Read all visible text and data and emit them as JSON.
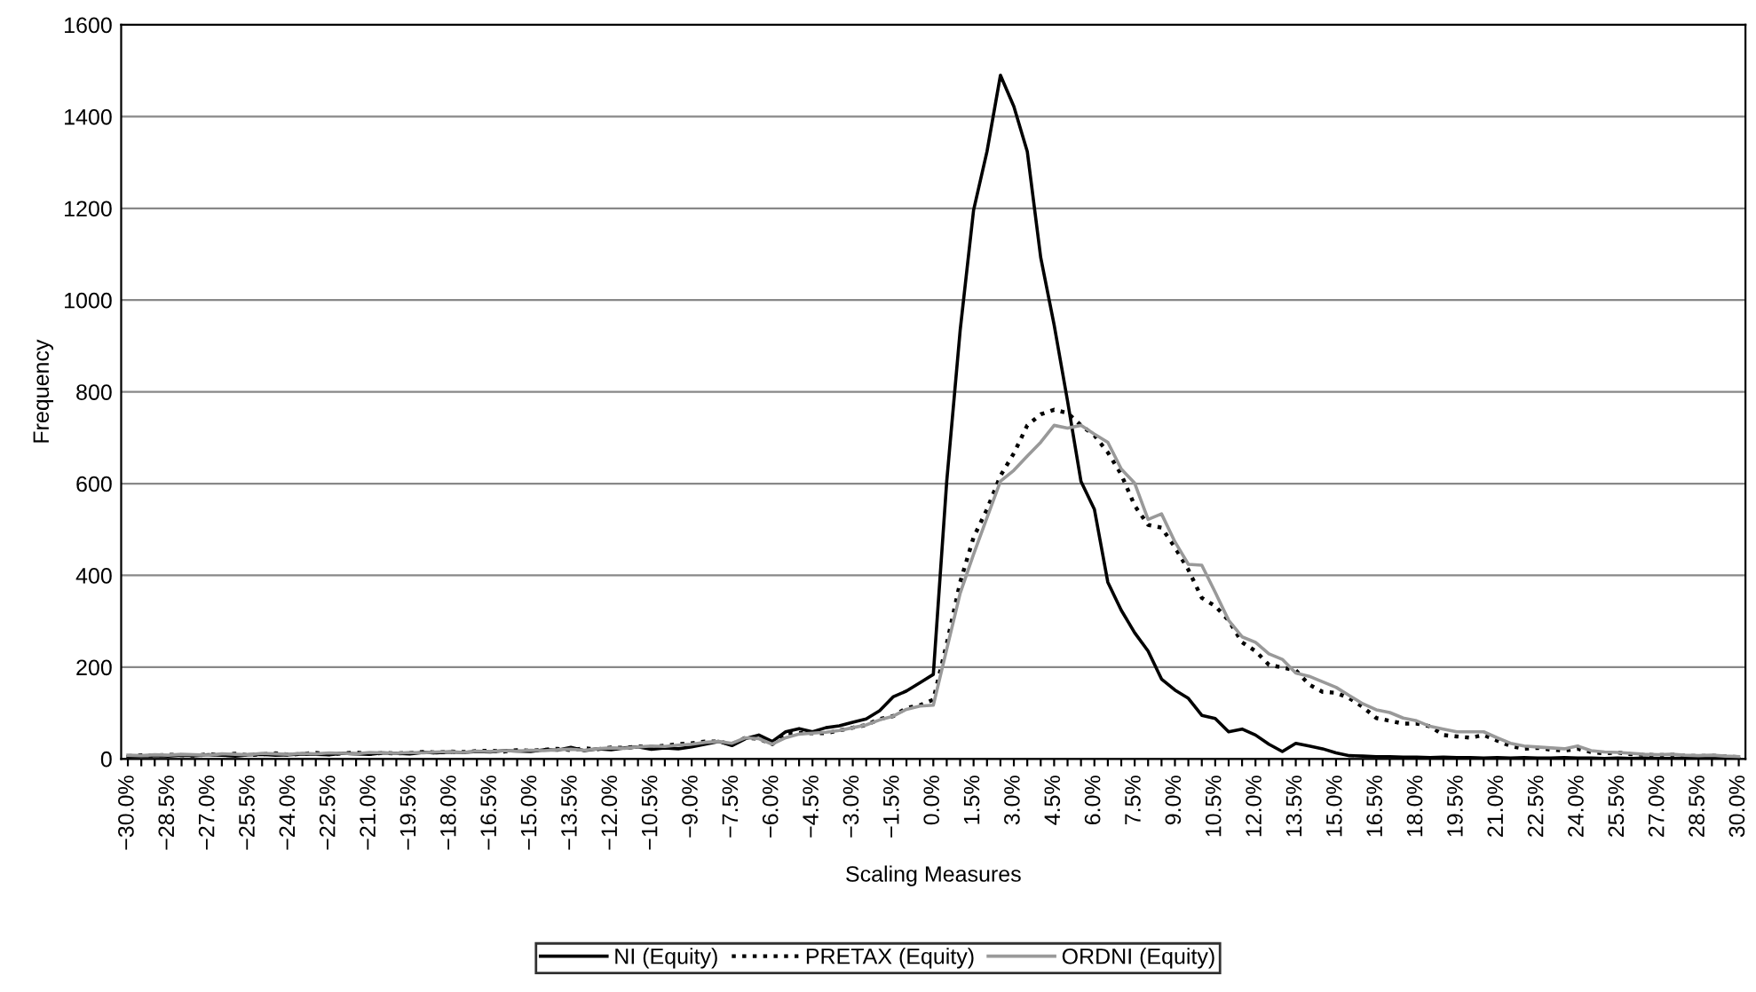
{
  "chart_data": {
    "type": "line",
    "xlabel": "Scaling Measures",
    "ylabel": "Frequency",
    "categories": [
      "−30.0%",
      null,
      null,
      "−28.5%",
      null,
      null,
      "−27.0%",
      null,
      null,
      "−25.5%",
      null,
      null,
      "−24.0%",
      null,
      null,
      "−22.5%",
      null,
      null,
      "−21.0%",
      null,
      null,
      "−19.5%",
      null,
      null,
      "−18.0%",
      null,
      null,
      "−16.5%",
      null,
      null,
      "−15.0%",
      null,
      null,
      "−13.5%",
      null,
      null,
      "−12.0%",
      null,
      null,
      "−10.5%",
      null,
      null,
      "−9.0%",
      null,
      null,
      "−7.5%",
      null,
      null,
      "−6.0%",
      null,
      null,
      "−4.5%",
      null,
      null,
      "−3.0%",
      null,
      null,
      "−1.5%",
      null,
      null,
      "0.0%",
      null,
      null,
      "1.5%",
      null,
      null,
      "3.0%",
      null,
      null,
      "4.5%",
      null,
      null,
      "6.0%",
      null,
      null,
      "7.5%",
      null,
      null,
      "9.0%",
      null,
      null,
      "10.5%",
      null,
      null,
      "12.0%",
      null,
      null,
      "13.5%",
      null,
      null,
      "15.0%",
      null,
      null,
      "16.5%",
      null,
      null,
      "18.0%",
      null,
      null,
      "19.5%",
      null,
      null,
      "21.0%",
      null,
      null,
      "22.5%",
      null,
      null,
      "24.0%",
      null,
      null,
      "25.5%",
      null,
      null,
      "27.0%",
      null,
      null,
      "28.5%",
      null,
      null,
      "30.0%"
    ],
    "series": [
      {
        "name": "NI (Equity)",
        "color": "#000000",
        "line_style": "solid",
        "values": [
          5,
          6,
          7,
          6,
          8,
          7,
          9,
          8,
          6,
          9,
          10,
          8,
          9,
          11,
          10,
          9,
          12,
          11,
          10,
          13,
          12,
          11,
          14,
          13,
          15,
          14,
          16,
          15,
          18,
          17,
          16,
          20,
          19,
          25,
          18,
          22,
          20,
          24,
          26,
          21,
          24,
          22,
          26,
          32,
          38,
          29,
          44,
          52,
          38,
          59,
          66,
          59,
          68,
          72,
          80,
          87,
          105,
          135,
          148,
          166,
          184,
          605,
          934,
          1196,
          1324,
          1490,
          1422,
          1324,
          1093,
          946,
          780,
          605,
          544,
          385,
          324,
          275,
          235,
          174,
          150,
          132,
          95,
          88,
          59,
          65,
          52,
          32,
          16,
          34,
          28,
          22,
          13,
          7,
          6,
          5,
          5,
          4,
          4,
          3,
          4,
          3,
          3,
          2,
          3,
          2,
          3,
          2,
          2,
          3,
          2,
          2,
          1,
          2,
          1,
          2,
          1,
          1,
          2,
          1,
          1,
          1,
          1
        ]
      },
      {
        "name": "PRETAX (Equity)",
        "color": "#000000",
        "line_style": "dotted",
        "values": [
          6,
          8,
          7,
          9,
          8,
          7,
          10,
          9,
          11,
          8,
          10,
          12,
          9,
          11,
          13,
          10,
          12,
          14,
          11,
          13,
          12,
          13,
          15,
          14,
          16,
          15,
          17,
          18,
          16,
          19,
          18,
          20,
          22,
          19,
          23,
          21,
          25,
          24,
          27,
          26,
          29,
          32,
          34,
          38,
          38,
          32,
          46,
          44,
          32,
          56,
          56,
          56,
          56,
          62,
          68,
          74,
          87,
          93,
          111,
          117,
          129,
          251,
          385,
          483,
          544,
          617,
          666,
          727,
          751,
          761,
          754,
          727,
          705,
          668,
          620,
          552,
          510,
          504,
          461,
          412,
          351,
          333,
          302,
          254,
          235,
          205,
          199,
          193,
          162,
          146,
          144,
          132,
          113,
          89,
          83,
          77,
          77,
          71,
          52,
          49,
          46,
          52,
          40,
          28,
          22,
          24,
          20,
          18,
          22,
          15,
          12,
          14,
          10,
          9,
          8,
          9,
          7,
          6,
          7,
          5,
          4
        ]
      },
      {
        "name": "ORDNI (Equity)",
        "color": "#999999",
        "line_style": "solid",
        "values": [
          8,
          7,
          9,
          8,
          10,
          9,
          8,
          11,
          10,
          9,
          12,
          11,
          10,
          12,
          11,
          13,
          12,
          11,
          14,
          13,
          12,
          14,
          13,
          15,
          16,
          14,
          17,
          16,
          18,
          17,
          19,
          18,
          20,
          21,
          19,
          22,
          24,
          23,
          26,
          28,
          27,
          30,
          32,
          36,
          38,
          34,
          46,
          44,
          32,
          46,
          54,
          56,
          58,
          62,
          68,
          74,
          85,
          93,
          108,
          115,
          117,
          239,
          361,
          446,
          526,
          605,
          629,
          660,
          690,
          727,
          721,
          727,
          708,
          690,
          632,
          601,
          522,
          534,
          473,
          424,
          422,
          363,
          302,
          266,
          254,
          229,
          217,
          187,
          180,
          168,
          156,
          138,
          120,
          107,
          101,
          89,
          83,
          71,
          65,
          59,
          59,
          59,
          46,
          34,
          28,
          26,
          24,
          22,
          28,
          18,
          15,
          14,
          12,
          10,
          9,
          10,
          8,
          7,
          8,
          6,
          5
        ]
      }
    ],
    "ylim": [
      0,
      1600
    ],
    "yticks": [
      0,
      200,
      400,
      600,
      800,
      1000,
      1200,
      1400,
      1600
    ],
    "grid": "y",
    "legend": "bottom"
  }
}
